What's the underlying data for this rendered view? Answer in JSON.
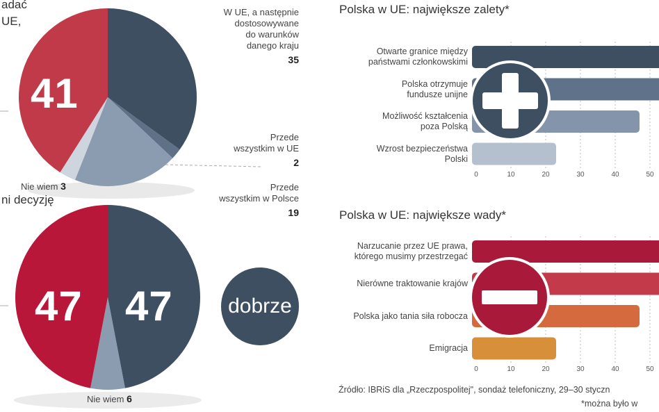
{
  "top_left_header": {
    "line1": "adać",
    "line2": "UE,"
  },
  "pie1": {
    "big_value": "41",
    "labels": {
      "ue_then_adapted": {
        "text": [
          "W UE, a następnie",
          "dostosowywane",
          "do warunków",
          "danego kraju"
        ],
        "value": "35"
      },
      "mainly_ue": {
        "text": [
          "Przede",
          "wszystkim w UE"
        ],
        "value": "2"
      },
      "mainly_poland": {
        "text": [
          "Przede",
          "wszystkim w Polsce"
        ],
        "value": "19"
      },
      "dont_know": {
        "text": "Nie wiem",
        "value": "3"
      }
    }
  },
  "pie2": {
    "header": "ni decyzję",
    "left_value": "47",
    "right_value": "47",
    "dont_know": {
      "text": "Nie wiem",
      "value": "6"
    },
    "badge": "dobrze"
  },
  "chart_data": [
    {
      "type": "pie",
      "slices": [
        {
          "label": "",
          "value": 41,
          "color": "#c03a4a"
        },
        {
          "label": "W UE, a następnie dostosowywane do warunków danego kraju",
          "value": 35,
          "color": "#3d4f60"
        },
        {
          "label": "Przede wszystkim w UE",
          "value": 2,
          "color": "#5e7187"
        },
        {
          "label": "Przede wszystkim w Polsce",
          "value": 19,
          "color": "#8b9bb0"
        },
        {
          "label": "Nie wiem",
          "value": 3,
          "color": "#cfd5de"
        }
      ]
    },
    {
      "type": "pie",
      "slices": [
        {
          "label": "",
          "value": 47,
          "color": "#b8173a"
        },
        {
          "label": "dobrze",
          "value": 47,
          "color": "#3d4f60"
        },
        {
          "label": "Nie wiem",
          "value": 6,
          "color": "#8b9bb0"
        }
      ]
    },
    {
      "type": "bar",
      "title": "Polska w UE: największe zalety*",
      "categories": [
        "Otwarte granice między państwami członkowskimi",
        "Polska otrzymuje fundusze unijne",
        "Możliwość kształcenia poza Polską",
        "Wzrost bezpieczeństwa Polski"
      ],
      "category_lines": [
        [
          "Otwarte granice między",
          "państwami członkowskimi"
        ],
        [
          "Polska otrzymuje",
          "fundusze unijne"
        ],
        [
          "Możliwość kształcenia",
          "poza Polską"
        ],
        [
          "Wzrost bezpieczeństwa",
          "Polski"
        ]
      ],
      "values": [
        60,
        56,
        47,
        23
      ],
      "colors": [
        "#3d4f60",
        "#5f7289",
        "#8495ab",
        "#b5c0cf"
      ],
      "xticks": [
        0,
        10,
        20,
        30,
        40,
        50
      ],
      "xlim": [
        0,
        60
      ]
    },
    {
      "type": "bar",
      "title": "Polska w UE: największe wady*",
      "categories": [
        "Narzucanie przez UE prawa, którego musimy przestrzegać",
        "Nierówne traktowanie krajów",
        "Polska jako tania siła robocza",
        "Emigracja"
      ],
      "category_lines": [
        [
          "Narzucanie przez UE prawa,",
          "którego musimy przestrzegać"
        ],
        [
          "Nierówne traktowanie krajów"
        ],
        [
          "Polska jako tania siła robocza"
        ],
        [
          "Emigracja"
        ]
      ],
      "values": [
        60,
        55,
        47,
        23
      ],
      "colors": [
        "#a8193a",
        "#c33a4b",
        "#d56a3f",
        "#d78f3a"
      ],
      "xticks": [
        0,
        10,
        20,
        30,
        40,
        50
      ],
      "xlim": [
        0,
        60
      ]
    }
  ],
  "source": {
    "line1": "Źródło: IBRiS dla „Rzeczpospolitej\", sondaż telefoniczny, 29–30 styczn",
    "line2": "*można było w"
  }
}
